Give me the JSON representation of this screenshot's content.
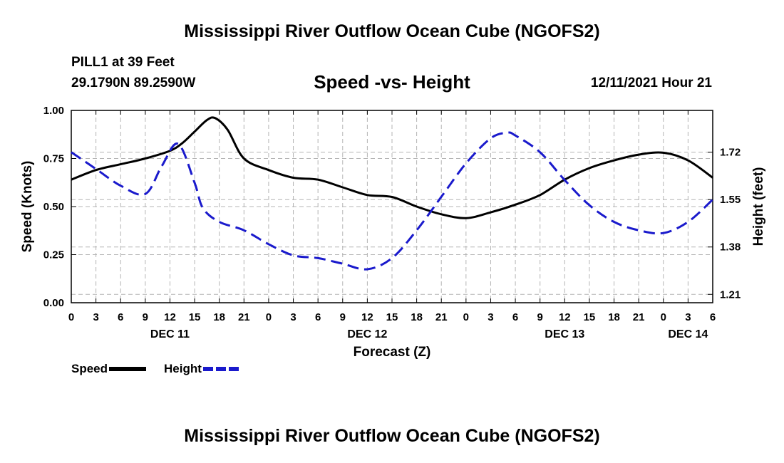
{
  "page": {
    "title_top": "Mississippi River Outflow Ocean Cube (NGOFS2)",
    "title_bottom": "Mississippi River Outflow Ocean Cube (NGOFS2)",
    "station": "PILL1 at 39 Feet",
    "coords": "29.1790N  89.2590W",
    "subtitle": "Speed -vs- Height",
    "datetime": "12/11/2021 Hour 21"
  },
  "chart_data": {
    "type": "line",
    "title": "Speed -vs- Height",
    "xlabel": "Forecast (Z)",
    "ylabel_left": "Speed (Knots)",
    "ylabel_right": "Height (feet)",
    "x_range_hours": [
      0,
      78
    ],
    "x_tick_labels": [
      "0",
      "3",
      "6",
      "9",
      "12",
      "15",
      "18",
      "21",
      "0",
      "3",
      "6",
      "9",
      "12",
      "15",
      "18",
      "21",
      "0",
      "3",
      "6",
      "9",
      "12",
      "15",
      "18",
      "21",
      "0",
      "3",
      "6"
    ],
    "date_labels": [
      {
        "hour": 12,
        "label": "DEC 11"
      },
      {
        "hour": 36,
        "label": "DEC 12"
      },
      {
        "hour": 60,
        "label": "DEC 13"
      },
      {
        "hour": 75,
        "label": "DEC 14"
      }
    ],
    "y_left_range": [
      0,
      1.0
    ],
    "y_left_ticks": [
      "0.00",
      "0.25",
      "0.50",
      "0.75",
      "1.00"
    ],
    "y_right_range": [
      1.18,
      1.87
    ],
    "y_right_ticks": [
      "1.21",
      "1.38",
      "1.55",
      "1.72"
    ],
    "grid": true,
    "legend": [
      {
        "name": "Speed",
        "color": "#000000",
        "style": "solid"
      },
      {
        "name": "Height",
        "color": "#1a1acc",
        "style": "dashed"
      }
    ],
    "series": [
      {
        "name": "Speed",
        "axis": "left",
        "color": "#000000",
        "x": [
          0,
          3,
          6,
          9,
          12,
          13.5,
          15,
          16.5,
          17.5,
          19,
          21,
          24,
          27,
          30,
          33,
          36,
          39,
          42,
          45,
          48,
          51,
          54,
          57,
          60,
          63,
          66,
          69,
          72,
          75,
          78
        ],
        "values": [
          0.64,
          0.69,
          0.72,
          0.75,
          0.79,
          0.83,
          0.89,
          0.95,
          0.96,
          0.9,
          0.75,
          0.69,
          0.65,
          0.64,
          0.6,
          0.56,
          0.55,
          0.5,
          0.46,
          0.44,
          0.47,
          0.51,
          0.56,
          0.64,
          0.7,
          0.74,
          0.77,
          0.78,
          0.74,
          0.65
        ]
      },
      {
        "name": "Height",
        "axis": "right",
        "color": "#1a1acc",
        "x": [
          0,
          3,
          6,
          9,
          11,
          13,
          15,
          16,
          18,
          21,
          24,
          27,
          30,
          33,
          36,
          39,
          42,
          45,
          48,
          51,
          53,
          54,
          57,
          60,
          63,
          66,
          69,
          72,
          75,
          78
        ],
        "values": [
          1.72,
          1.66,
          1.6,
          1.57,
          1.67,
          1.75,
          1.61,
          1.52,
          1.47,
          1.44,
          1.39,
          1.35,
          1.34,
          1.32,
          1.3,
          1.34,
          1.44,
          1.56,
          1.68,
          1.77,
          1.79,
          1.78,
          1.72,
          1.62,
          1.53,
          1.47,
          1.44,
          1.43,
          1.47,
          1.55
        ]
      }
    ]
  }
}
